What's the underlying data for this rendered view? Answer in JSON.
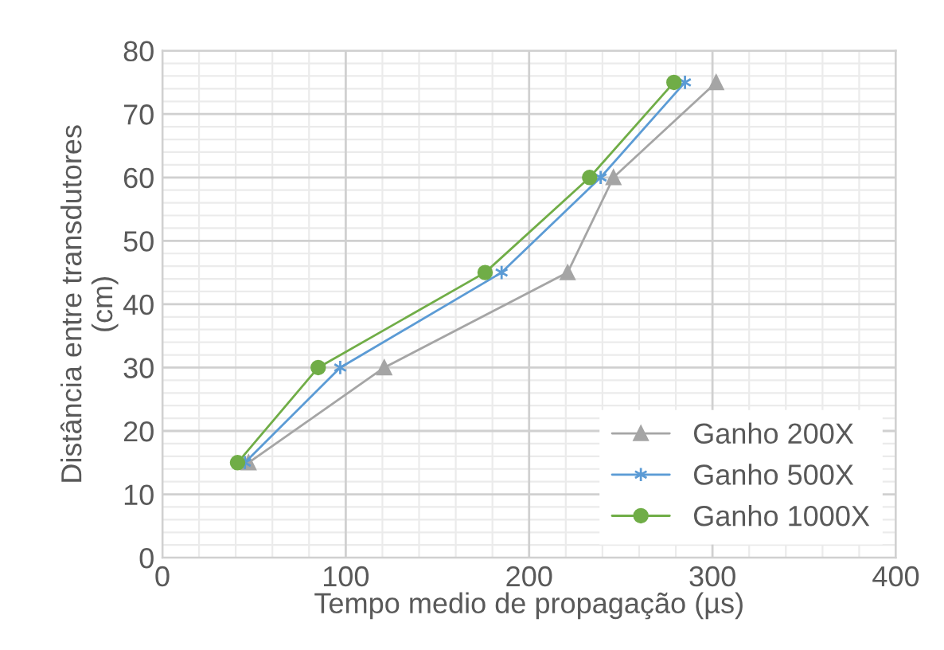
{
  "chart_data": {
    "type": "line",
    "xlabel": "Tempo medio de propagação (µs)",
    "ylabel": "Distância entre transdutores\n(cm)",
    "xlim": [
      0,
      400
    ],
    "xticks": [
      0,
      100,
      200,
      300,
      400
    ],
    "ylim": [
      0,
      80
    ],
    "yticks": [
      0,
      10,
      20,
      30,
      40,
      50,
      60,
      70,
      80
    ],
    "grid": true,
    "legend": "bottom right",
    "series": [
      {
        "name": "Ganho 200X",
        "color": "#a5a5a5",
        "marker": "triangle",
        "x": [
          47,
          121,
          221,
          246,
          302
        ],
        "values": [
          15,
          30,
          45,
          60,
          75
        ]
      },
      {
        "name": "Ganho 500X",
        "color": "#5b9bd5",
        "marker": "cross",
        "x": [
          45,
          97,
          185,
          239,
          285
        ],
        "values": [
          15,
          30,
          45,
          60,
          75
        ]
      },
      {
        "name": "Ganho 1000X",
        "color": "#70ad47",
        "marker": "circle",
        "x": [
          41,
          85,
          176,
          233,
          279
        ],
        "values": [
          15,
          30,
          45,
          60,
          75
        ]
      }
    ]
  }
}
